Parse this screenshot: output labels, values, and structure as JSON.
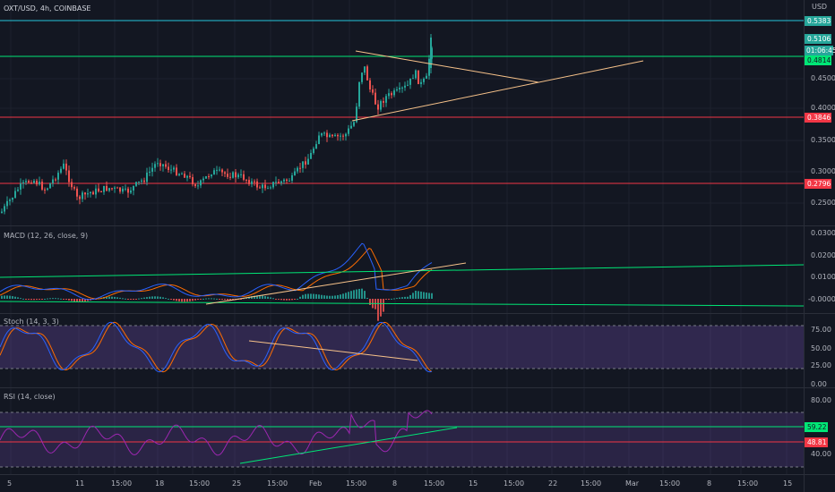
{
  "header": {
    "symbol": "OXT/USD, 4h, COINBASE",
    "currency": "USD"
  },
  "price_axis": {
    "ticks": [
      "0.4500",
      "0.4000",
      "0.3500",
      "0.3000",
      "0.2500"
    ],
    "tags": [
      {
        "text": "0.5383",
        "color": "#26a69a",
        "dark_text": false
      },
      {
        "text": "0.5106",
        "color": "#26a69a",
        "dark_text": false
      },
      {
        "text": "01:06:45",
        "color": "#26a69a",
        "dark_text": false
      },
      {
        "text": "0.4814",
        "color": "#00e676",
        "dark_text": true
      },
      {
        "text": "0.3846",
        "color": "#f23645",
        "dark_text": false
      },
      {
        "text": "0.2796",
        "color": "#f23645",
        "dark_text": false
      }
    ]
  },
  "indicators": {
    "macd": {
      "title": "MACD (12, 26, close, 9)",
      "ticks": [
        "0.0300",
        "0.0200",
        "0.0100",
        "-0.0000"
      ]
    },
    "stoch": {
      "title": "Stoch (14, 3, 3)",
      "ticks": [
        "75.00",
        "50.00",
        "25.00",
        "0.00"
      ]
    },
    "rsi": {
      "title": "RSI (14, close)",
      "ticks": [
        "80.00",
        "40.00"
      ],
      "tags": [
        {
          "text": "59.22",
          "color": "#00e676",
          "dark_text": true
        },
        {
          "text": "48.81",
          "color": "#f23645",
          "dark_text": false
        }
      ]
    }
  },
  "time_axis": [
    "5",
    "11",
    "15:00",
    "18",
    "15:00",
    "25",
    "15:00",
    "Feb",
    "15:00",
    "8",
    "15:00",
    "15",
    "15:00",
    "22",
    "15:00",
    "Mar",
    "15:00",
    "8",
    "15:00",
    "15"
  ],
  "colors": {
    "up": "#26a69a",
    "down": "#ef5350",
    "cyan_line": "#26c6da",
    "green_line": "#00e676",
    "red_line": "#f23645",
    "trend_line": "#f7c28a",
    "macd_line": "#2962ff",
    "signal_line": "#ff6d00",
    "stoch_k": "#2962ff",
    "stoch_d": "#ff6d00",
    "stoch_band": "#7e57c2",
    "rsi_line": "#9c27b0",
    "rsi_band": "#7e57c2"
  }
}
